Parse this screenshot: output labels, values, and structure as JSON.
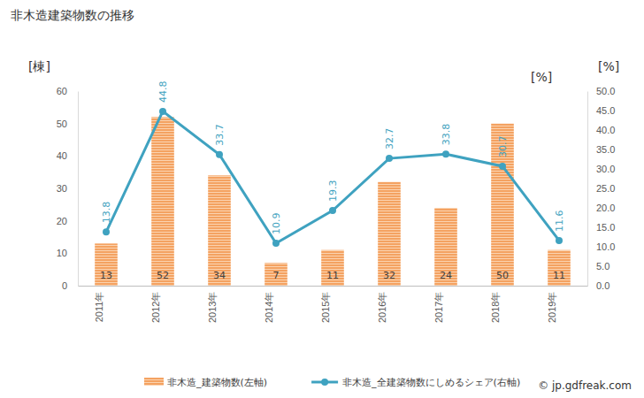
{
  "chart_data": {
    "type": "bar",
    "title": "非木造建築物数の推移",
    "y_label": "[棟]",
    "y2_label": "[%]",
    "annotations": [
      "© jp.gdfreak.com"
    ],
    "categories": [
      "2011年",
      "2012年",
      "2013年",
      "2014年",
      "2015年",
      "2016年",
      "2017年",
      "2018年",
      "2019年"
    ],
    "series": [
      {
        "name": "非木造_建築物数(左軸)",
        "type": "bar",
        "color": "#f4a261",
        "axis": "y",
        "values": [
          13,
          52,
          34,
          7,
          11,
          32,
          24,
          50,
          11
        ]
      },
      {
        "name": "非木造_全建築物数にしめるシェア(右軸)",
        "type": "line",
        "color": "#3fa2c0",
        "axis": "y2",
        "marker": "circle",
        "values": [
          13.8,
          44.8,
          33.7,
          10.9,
          19.3,
          32.7,
          33.8,
          30.7,
          11.6
        ]
      }
    ],
    "ylim": [
      0,
      60
    ],
    "yticks": [
      0,
      10,
      20,
      30,
      40,
      50,
      60
    ],
    "y2lim": [
      0,
      50
    ],
    "y2ticks": [
      {
        "value": 0,
        "label": "0.0"
      },
      {
        "value": 5,
        "label": "5.0"
      },
      {
        "value": 10,
        "label": "10.0"
      },
      {
        "value": 15,
        "label": "15.0"
      },
      {
        "value": 20,
        "label": "20.0"
      },
      {
        "value": 25,
        "label": "25.0"
      },
      {
        "value": 30,
        "label": "30.0"
      },
      {
        "value": 35,
        "label": "35.0"
      },
      {
        "value": 40,
        "label": "40.0"
      },
      {
        "value": 45,
        "label": "45.0"
      },
      {
        "value": 50,
        "label": "50.0"
      }
    ],
    "grid": false,
    "legend": "bottom",
    "data_labels": true
  }
}
